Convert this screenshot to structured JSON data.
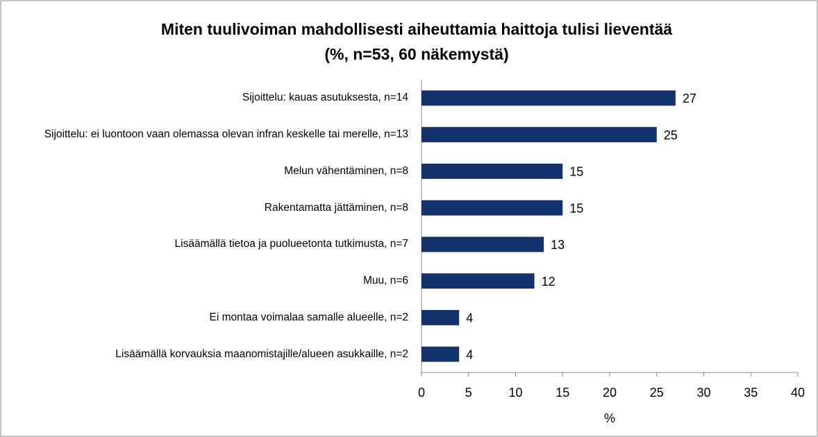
{
  "chart_data": {
    "type": "bar",
    "orientation": "horizontal",
    "title": [
      "Miten tuulivoiman mahdollisesti aiheuttamia haittoja tulisi lieventää",
      "(%, n=53, 60 näkemystä)"
    ],
    "categories": [
      "Sijoittelu: kauas asutuksesta, n=14",
      "Sijoittelu: ei luontoon vaan olemassa olevan infran keskelle tai merelle, n=13",
      "Melun vähentäminen, n=8",
      "Rakentamatta jättäminen, n=8",
      "Lisäämällä tietoa ja puolueetonta tutkimusta, n=7",
      "Muu, n=6",
      "Ei montaa voimalaa samalle alueelle, n=2",
      "Lisäämällä korvauksia maanomistajille/alueen asukkaille, n=2"
    ],
    "values": [
      27,
      25,
      15,
      15,
      13,
      12,
      4,
      4
    ],
    "color": "#14326e",
    "xlabel": "%",
    "xlim": [
      0,
      40
    ],
    "xticks": [
      0,
      5,
      10,
      15,
      20,
      25,
      30,
      35,
      40
    ],
    "grid": false
  }
}
